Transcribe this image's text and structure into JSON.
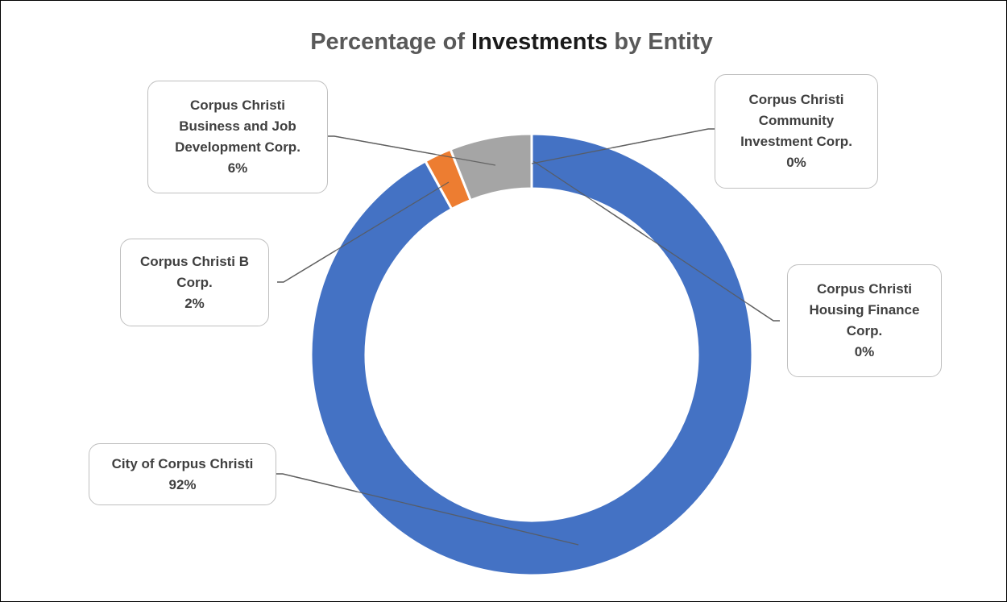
{
  "chart_data": {
    "type": "pie",
    "variant": "doughnut",
    "title": {
      "prefix": "Percentage of ",
      "emphasis": "Investments",
      "suffix": " by Entity"
    },
    "slices": [
      {
        "name": "Corpus Christi Community Investment Corp.",
        "lines": [
          "Corpus Christi",
          "Community",
          "Investment Corp."
        ],
        "value": 0,
        "label": "0%",
        "color": "#5B9BD5"
      },
      {
        "name": "Corpus Christi Housing Finance Corp.",
        "lines": [
          "Corpus Christi",
          "Housing Finance",
          "Corp."
        ],
        "value": 0,
        "label": "0%",
        "color": "#A5A5A5"
      },
      {
        "name": "City of Corpus Christi",
        "lines": [
          "City of Corpus Christi"
        ],
        "value": 92,
        "label": "92%",
        "color": "#4472C4"
      },
      {
        "name": "Corpus Christi B Corp.",
        "lines": [
          "Corpus Christi B",
          "Corp."
        ],
        "value": 2,
        "label": "2%",
        "color": "#ED7D31"
      },
      {
        "name": "Corpus Christi Business and Job Development Corp.",
        "lines": [
          "Corpus Christi",
          "Business and Job",
          "Development Corp."
        ],
        "value": 6,
        "label": "6%",
        "color": "#A5A5A5"
      }
    ],
    "legend": "none"
  }
}
